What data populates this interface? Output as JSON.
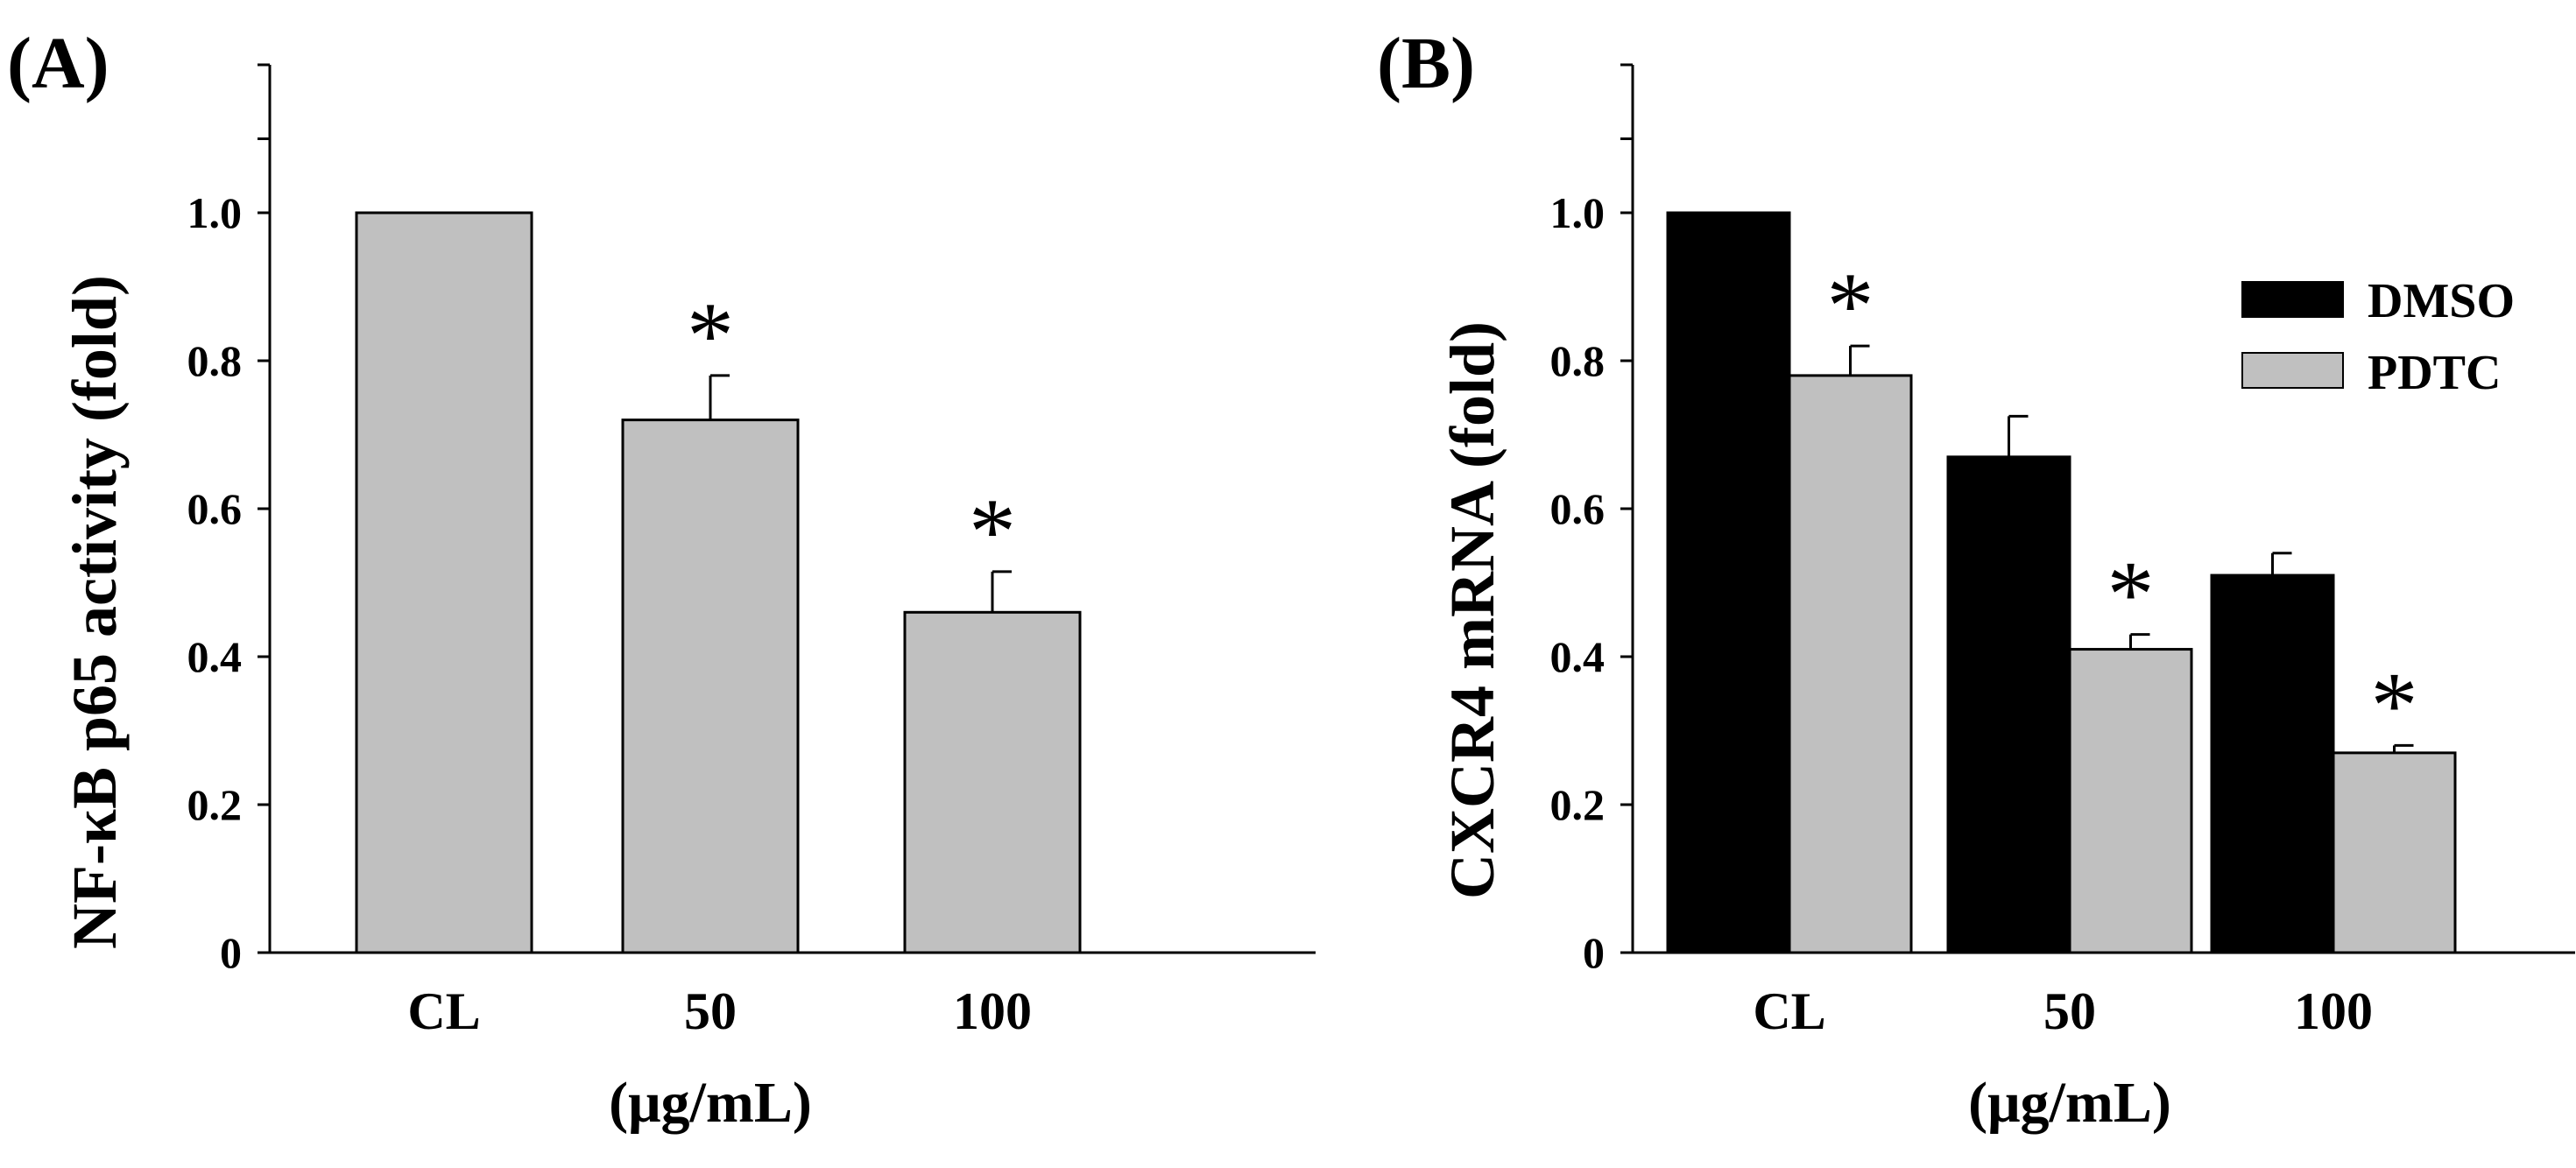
{
  "figure": {
    "panels": [
      "(A)",
      "(B)"
    ]
  },
  "chart_data": [
    {
      "type": "bar",
      "panel": "(A)",
      "title": "",
      "xlabel": "(μg/mL)",
      "ylabel": "NF-κB p65 activity (fold)",
      "categories": [
        "CL",
        "50",
        "100"
      ],
      "ylim": [
        0,
        1.2
      ],
      "yticks": [
        "0",
        "0.2",
        "0.4",
        "0.6",
        "0.8",
        "1.0"
      ],
      "grid": false,
      "series": [
        {
          "name": "",
          "color": "#c0c0c0",
          "values": [
            1.0,
            0.72,
            0.46
          ],
          "errors": [
            0,
            0.06,
            0.055
          ],
          "significance": [
            "",
            "*",
            "*"
          ]
        }
      ]
    },
    {
      "type": "bar",
      "panel": "(B)",
      "title": "",
      "xlabel": "(μg/mL)",
      "ylabel": "CXCR4 mRNA (fold)",
      "categories": [
        "CL",
        "50",
        "100"
      ],
      "ylim": [
        0,
        1.2
      ],
      "yticks": [
        "0",
        "0.2",
        "0.4",
        "0.6",
        "0.8",
        "1.0"
      ],
      "grid": false,
      "legend_position": "top-right",
      "series": [
        {
          "name": "DMSO",
          "color": "#000000",
          "values": [
            1.0,
            0.67,
            0.51
          ],
          "errors": [
            0,
            0.055,
            0.03
          ],
          "significance": [
            "",
            "",
            ""
          ]
        },
        {
          "name": "PDTC",
          "color": "#c0c0c0",
          "values": [
            0.78,
            0.41,
            0.27
          ],
          "errors": [
            0.04,
            0.02,
            0.01
          ],
          "significance": [
            "*",
            "*",
            "*"
          ]
        }
      ]
    }
  ]
}
